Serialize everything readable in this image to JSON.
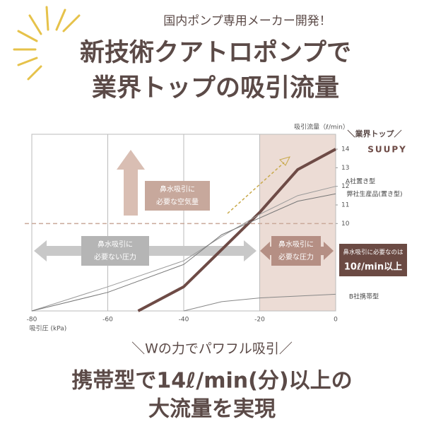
{
  "chart_data": {
    "type": "line",
    "header": "国内ポンプ専用メーカー開発！",
    "title_lines": [
      "新技術クアトロポンプで",
      "業界トップの吸引流量"
    ],
    "y_axis_label": "吸引流量（ℓ/min）",
    "x_axis_label": "吸引圧 (kPa)",
    "legend_tag": "＼業界トップ／",
    "xlim": [
      -80,
      0
    ],
    "xticks": [
      -80,
      -60,
      -40,
      -20,
      0
    ],
    "ylim": [
      5.3,
      14.8
    ],
    "yticks": [
      10,
      11,
      12,
      13,
      14
    ],
    "reference_line": 10,
    "highlight_range": [
      -20,
      0
    ],
    "series": [
      {
        "name": "SUUPY",
        "color": "#6e4b46",
        "x": [
          -52,
          -40,
          -30,
          -20,
          -10,
          0
        ],
        "values": [
          5.3,
          6.6,
          8.6,
          10.6,
          12.9,
          14.0
        ]
      },
      {
        "name": "A社置き型",
        "color": "#9a9a9a",
        "x": [
          -80,
          -60,
          -40,
          -30,
          -20,
          -10,
          0
        ],
        "values": [
          5.3,
          6.6,
          8.0,
          9.3,
          10.5,
          11.5,
          12.0
        ]
      },
      {
        "name": "弊社生産品(置き型)",
        "color": "#777777",
        "x": [
          -80,
          -60,
          -40,
          -30,
          -20,
          -10,
          0
        ],
        "values": [
          5.3,
          6.3,
          7.8,
          9.4,
          10.3,
          11.2,
          11.6
        ]
      },
      {
        "name": "B社携帯型",
        "color": "#888888",
        "x": [
          -40,
          -30,
          -20,
          -10,
          0
        ],
        "values": [
          5.3,
          5.8,
          6.0,
          6.1,
          6.2
        ]
      }
    ],
    "annotations": {
      "air": [
        "鼻水吸引に",
        "必要な空気量"
      ],
      "unneeded": [
        "鼻水吸引に",
        "必要ない圧力"
      ],
      "needed": [
        "鼻水吸引に",
        "必要な圧力"
      ],
      "callout": [
        "鼻水吸引に必要なのは",
        "10ℓ/min以上"
      ]
    },
    "footer": {
      "tagline": "＼Wの力でパワフル吸引／",
      "lines": [
        "携帯型で14ℓ/min(分)以上の",
        "大流量を実現"
      ]
    }
  }
}
